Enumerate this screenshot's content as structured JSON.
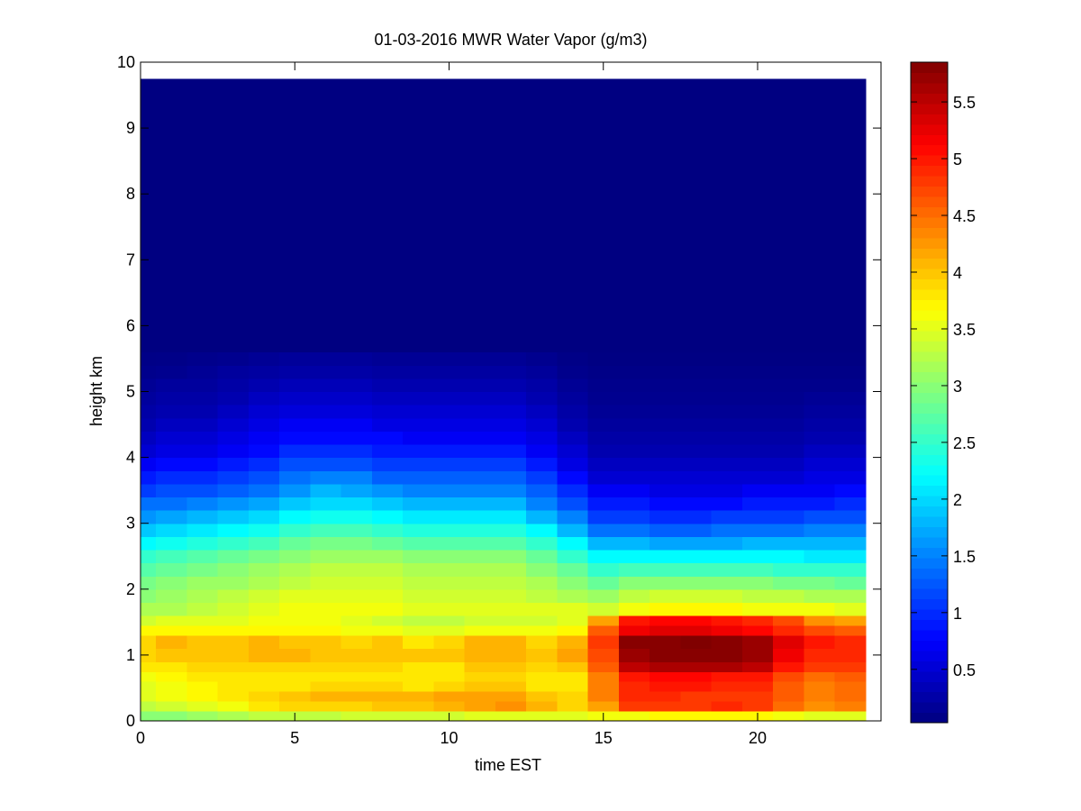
{
  "chart_data": {
    "type": "heatmap",
    "title": "01-03-2016 MWR Water Vapor (g/m3)",
    "xlabel": "time EST",
    "ylabel": "height km",
    "xlim": [
      0,
      24
    ],
    "ylim": [
      0,
      10
    ],
    "xticks": [
      0,
      5,
      10,
      15,
      20
    ],
    "yticks": [
      0,
      1,
      2,
      3,
      4,
      5,
      6,
      7,
      8,
      9,
      10
    ],
    "colorbar": {
      "colormap": "jet",
      "range": [
        0.03,
        5.85
      ],
      "ticks": [
        0.5,
        1,
        1.5,
        2,
        2.5,
        3,
        3.5,
        4,
        4.5,
        5,
        5.5
      ]
    },
    "x_centers": [
      0,
      1,
      2,
      3,
      4,
      5,
      6,
      7,
      8,
      9,
      10,
      11,
      12,
      13,
      14,
      15,
      16,
      17,
      18,
      19,
      20,
      21,
      22,
      23
    ],
    "x_edges": [
      0,
      0.5,
      1.5,
      2.5,
      3.5,
      4.5,
      5.5,
      6.5,
      7.5,
      8.5,
      9.5,
      10.5,
      11.5,
      12.5,
      13.5,
      14.5,
      15.5,
      16.5,
      17.5,
      18.5,
      19.5,
      20.5,
      21.5,
      22.5,
      23.5
    ],
    "height_edges": [
      0,
      0.15,
      0.3,
      0.45,
      0.6,
      0.75,
      0.9,
      1.1,
      1.3,
      1.45,
      1.6,
      1.8,
      2.0,
      2.2,
      2.4,
      2.6,
      2.8,
      3.0,
      3.2,
      3.4,
      3.6,
      3.8,
      4.0,
      4.2,
      4.4,
      4.6,
      4.8,
      5.0,
      5.2,
      5.4,
      5.6,
      9.75
    ],
    "values": [
      [
        3.0,
        3.0,
        3.1,
        3.2,
        3.3,
        3.3,
        3.3,
        3.4,
        3.4,
        3.4,
        3.4,
        3.5,
        3.5,
        3.5,
        3.5,
        3.6,
        3.6,
        3.7,
        3.7,
        3.7,
        3.7,
        3.6,
        3.5,
        3.5
      ],
      [
        3.3,
        3.4,
        3.5,
        3.6,
        3.8,
        3.9,
        3.9,
        3.9,
        4.0,
        4.0,
        4.1,
        4.2,
        4.3,
        4.1,
        3.9,
        4.2,
        4.8,
        4.8,
        4.8,
        4.9,
        4.8,
        4.5,
        4.3,
        4.4
      ],
      [
        3.5,
        3.6,
        3.7,
        3.8,
        3.9,
        4.0,
        4.1,
        4.1,
        4.1,
        4.1,
        4.2,
        4.2,
        4.2,
        4.0,
        3.9,
        4.4,
        4.9,
        4.9,
        4.8,
        4.8,
        4.8,
        4.6,
        4.4,
        4.5
      ],
      [
        3.5,
        3.6,
        3.7,
        3.8,
        3.8,
        3.8,
        3.9,
        3.9,
        3.9,
        3.8,
        3.9,
        4.0,
        4.0,
        3.8,
        3.8,
        4.4,
        4.9,
        5.0,
        5.0,
        4.9,
        4.9,
        4.6,
        4.4,
        4.5
      ],
      [
        3.6,
        3.7,
        3.8,
        3.8,
        3.8,
        3.8,
        3.8,
        3.8,
        3.8,
        3.8,
        3.8,
        3.9,
        3.9,
        3.8,
        3.8,
        4.4,
        5.0,
        5.1,
        5.1,
        5.0,
        5.0,
        4.7,
        4.5,
        4.6
      ],
      [
        3.8,
        3.8,
        3.9,
        3.9,
        3.9,
        3.9,
        3.9,
        3.9,
        3.9,
        3.8,
        3.8,
        4.0,
        4.0,
        3.9,
        4.0,
        4.6,
        5.5,
        5.6,
        5.6,
        5.6,
        5.5,
        5.0,
        4.8,
        4.8
      ],
      [
        3.9,
        4.0,
        4.0,
        4.0,
        4.1,
        4.1,
        4.0,
        4.0,
        4.0,
        4.0,
        4.0,
        4.1,
        4.1,
        4.0,
        4.2,
        4.7,
        5.7,
        5.8,
        5.8,
        5.8,
        5.7,
        5.2,
        4.9,
        4.9
      ],
      [
        3.9,
        4.1,
        4.0,
        4.0,
        4.1,
        4.0,
        4.0,
        3.9,
        4.0,
        3.8,
        3.9,
        4.1,
        4.1,
        3.9,
        4.1,
        4.8,
        5.8,
        5.8,
        5.9,
        5.8,
        5.7,
        5.3,
        5.0,
        4.9
      ],
      [
        3.7,
        3.7,
        3.7,
        3.7,
        3.7,
        3.7,
        3.7,
        3.6,
        3.6,
        3.5,
        3.5,
        3.6,
        3.6,
        3.6,
        3.7,
        4.6,
        5.2,
        5.3,
        5.3,
        5.2,
        5.1,
        4.9,
        4.7,
        4.6
      ],
      [
        3.4,
        3.5,
        3.5,
        3.5,
        3.6,
        3.6,
        3.6,
        3.5,
        3.4,
        3.3,
        3.3,
        3.4,
        3.4,
        3.4,
        3.5,
        4.2,
        5.0,
        5.1,
        5.1,
        5.0,
        4.9,
        4.7,
        4.3,
        4.2
      ],
      [
        3.2,
        3.2,
        3.3,
        3.4,
        3.5,
        3.6,
        3.6,
        3.6,
        3.6,
        3.5,
        3.5,
        3.5,
        3.5,
        3.5,
        3.5,
        3.4,
        3.6,
        3.7,
        3.7,
        3.7,
        3.6,
        3.6,
        3.6,
        3.5
      ],
      [
        3.0,
        3.1,
        3.2,
        3.3,
        3.4,
        3.5,
        3.5,
        3.5,
        3.5,
        3.4,
        3.4,
        3.4,
        3.4,
        3.3,
        3.2,
        3.1,
        3.3,
        3.4,
        3.4,
        3.4,
        3.3,
        3.3,
        3.2,
        3.2
      ],
      [
        2.9,
        3.0,
        3.1,
        3.1,
        3.2,
        3.3,
        3.4,
        3.4,
        3.4,
        3.3,
        3.3,
        3.3,
        3.3,
        3.2,
        3.0,
        2.8,
        3.0,
        3.0,
        3.0,
        3.0,
        3.0,
        2.9,
        2.9,
        2.8
      ],
      [
        2.7,
        2.8,
        2.9,
        3.0,
        3.1,
        3.2,
        3.3,
        3.3,
        3.3,
        3.2,
        3.2,
        3.2,
        3.2,
        3.0,
        2.8,
        2.5,
        2.6,
        2.6,
        2.6,
        2.6,
        2.6,
        2.5,
        2.5,
        2.5
      ],
      [
        2.5,
        2.6,
        2.7,
        2.8,
        2.9,
        3.0,
        3.1,
        3.1,
        3.1,
        3.0,
        3.0,
        3.0,
        3.0,
        2.8,
        2.5,
        2.2,
        2.2,
        2.2,
        2.2,
        2.2,
        2.2,
        2.2,
        2.1,
        2.1
      ],
      [
        2.2,
        2.3,
        2.4,
        2.5,
        2.6,
        2.8,
        2.9,
        2.9,
        2.8,
        2.7,
        2.7,
        2.7,
        2.7,
        2.5,
        2.2,
        1.8,
        1.8,
        1.7,
        1.7,
        1.7,
        1.8,
        1.8,
        1.8,
        1.8
      ],
      [
        1.9,
        2.0,
        2.1,
        2.2,
        2.3,
        2.5,
        2.6,
        2.6,
        2.5,
        2.4,
        2.4,
        2.4,
        2.4,
        2.2,
        1.8,
        1.4,
        1.4,
        1.3,
        1.3,
        1.4,
        1.4,
        1.4,
        1.5,
        1.5
      ],
      [
        1.6,
        1.7,
        1.8,
        1.9,
        2.0,
        2.2,
        2.3,
        2.3,
        2.2,
        2.1,
        2.1,
        2.1,
        2.1,
        1.8,
        1.5,
        1.1,
        1.1,
        1.0,
        1.0,
        1.1,
        1.1,
        1.1,
        1.2,
        1.2
      ],
      [
        1.4,
        1.4,
        1.5,
        1.6,
        1.7,
        1.9,
        2.0,
        2.0,
        1.9,
        1.8,
        1.8,
        1.8,
        1.8,
        1.5,
        1.2,
        0.9,
        0.9,
        0.8,
        0.8,
        0.8,
        0.9,
        0.9,
        0.9,
        1.0
      ],
      [
        1.1,
        1.2,
        1.2,
        1.3,
        1.4,
        1.6,
        1.8,
        1.7,
        1.6,
        1.5,
        1.5,
        1.5,
        1.5,
        1.3,
        1.0,
        0.7,
        0.7,
        0.6,
        0.6,
        0.6,
        0.7,
        0.7,
        0.7,
        0.8
      ],
      [
        0.9,
        1.0,
        1.0,
        1.1,
        1.2,
        1.4,
        1.5,
        1.5,
        1.3,
        1.3,
        1.3,
        1.3,
        1.3,
        1.1,
        0.8,
        0.5,
        0.5,
        0.5,
        0.5,
        0.5,
        0.5,
        0.5,
        0.6,
        0.6
      ],
      [
        0.7,
        0.8,
        0.8,
        0.9,
        1.0,
        1.2,
        1.2,
        1.2,
        1.1,
        1.1,
        1.1,
        1.1,
        1.1,
        0.9,
        0.6,
        0.4,
        0.4,
        0.4,
        0.4,
        0.4,
        0.4,
        0.4,
        0.5,
        0.5
      ],
      [
        0.5,
        0.6,
        0.6,
        0.7,
        0.8,
        1.0,
        1.0,
        1.0,
        0.9,
        0.9,
        0.9,
        0.9,
        0.9,
        0.7,
        0.5,
        0.3,
        0.3,
        0.3,
        0.3,
        0.3,
        0.3,
        0.3,
        0.4,
        0.4
      ],
      [
        0.4,
        0.5,
        0.5,
        0.6,
        0.7,
        0.8,
        0.8,
        0.8,
        0.8,
        0.7,
        0.7,
        0.7,
        0.7,
        0.6,
        0.4,
        0.25,
        0.25,
        0.25,
        0.25,
        0.25,
        0.25,
        0.25,
        0.3,
        0.3
      ],
      [
        0.3,
        0.4,
        0.4,
        0.5,
        0.6,
        0.7,
        0.7,
        0.7,
        0.6,
        0.6,
        0.6,
        0.6,
        0.6,
        0.5,
        0.3,
        0.2,
        0.2,
        0.2,
        0.2,
        0.2,
        0.2,
        0.2,
        0.25,
        0.25
      ],
      [
        0.25,
        0.3,
        0.3,
        0.4,
        0.5,
        0.55,
        0.55,
        0.55,
        0.5,
        0.5,
        0.5,
        0.5,
        0.5,
        0.4,
        0.25,
        0.15,
        0.15,
        0.15,
        0.15,
        0.15,
        0.15,
        0.15,
        0.2,
        0.2
      ],
      [
        0.2,
        0.25,
        0.25,
        0.3,
        0.4,
        0.45,
        0.45,
        0.45,
        0.4,
        0.4,
        0.4,
        0.4,
        0.4,
        0.3,
        0.2,
        0.12,
        0.12,
        0.12,
        0.12,
        0.12,
        0.12,
        0.12,
        0.15,
        0.15
      ],
      [
        0.15,
        0.2,
        0.2,
        0.25,
        0.3,
        0.35,
        0.35,
        0.35,
        0.3,
        0.3,
        0.3,
        0.3,
        0.3,
        0.25,
        0.15,
        0.1,
        0.1,
        0.1,
        0.1,
        0.1,
        0.1,
        0.1,
        0.1,
        0.1
      ],
      [
        0.1,
        0.12,
        0.15,
        0.2,
        0.22,
        0.25,
        0.25,
        0.25,
        0.22,
        0.22,
        0.22,
        0.22,
        0.22,
        0.18,
        0.1,
        0.07,
        0.07,
        0.07,
        0.07,
        0.07,
        0.07,
        0.07,
        0.07,
        0.07
      ],
      [
        0.07,
        0.08,
        0.1,
        0.12,
        0.15,
        0.18,
        0.18,
        0.18,
        0.15,
        0.15,
        0.15,
        0.15,
        0.15,
        0.12,
        0.07,
        0.05,
        0.05,
        0.05,
        0.05,
        0.05,
        0.05,
        0.05,
        0.05,
        0.05
      ],
      [
        0.04,
        0.04,
        0.04,
        0.04,
        0.04,
        0.04,
        0.04,
        0.04,
        0.04,
        0.04,
        0.04,
        0.04,
        0.04,
        0.04,
        0.04,
        0.04,
        0.04,
        0.04,
        0.04,
        0.04,
        0.04,
        0.04,
        0.04,
        0.04
      ]
    ]
  }
}
